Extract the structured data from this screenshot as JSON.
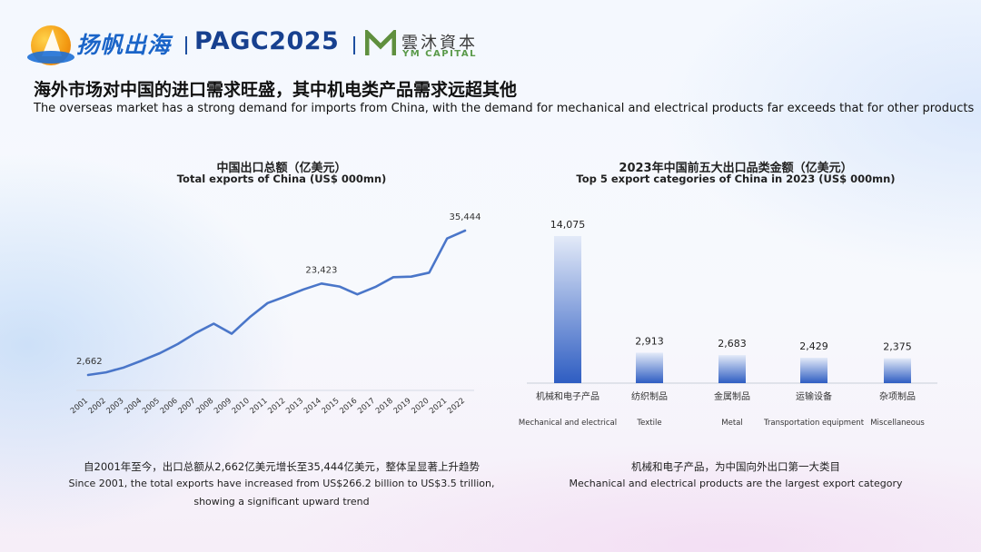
{
  "header": {
    "brand_cn": "扬帆出海",
    "brand_event": "PAGC2025",
    "partner_cn": "雲沐資本",
    "partner_en": "YM CAPITAL"
  },
  "slide": {
    "title_cn": "海外市场对中国的进口需求旺盛，其中机电类产品需求远超其他",
    "title_en": "The overseas market has a strong demand for imports from China, with the demand for mechanical and electrical products far exceeds that for other products"
  },
  "colors": {
    "line": "#4a76c9",
    "bar_top": "#e3eaf8",
    "bar_bottom": "#2e5dc2",
    "accent_brand": "#1a64c8"
  },
  "chart_data": [
    {
      "type": "line",
      "title": "中国出口总额（亿美元）",
      "subtitle": "Total exports of China (US$ 000mn)",
      "x": [
        "2001",
        "2002",
        "2003",
        "2004",
        "2005",
        "2006",
        "2007",
        "2008",
        "2009",
        "2010",
        "2011",
        "2012",
        "2013",
        "2014",
        "2015",
        "2016",
        "2017",
        "2018",
        "2019",
        "2020",
        "2021",
        "2022"
      ],
      "values": [
        2662,
        3256,
        4382,
        5933,
        7620,
        9690,
        12205,
        14307,
        12016,
        15778,
        18984,
        20487,
        22090,
        23423,
        22735,
        20976,
        22635,
        24874,
        24995,
        25900,
        33640,
        35444
      ],
      "data_labels": {
        "2001": "2,662",
        "2014": "23,423",
        "2022": "35,444"
      },
      "ylim": [
        0,
        40000
      ],
      "grid": false,
      "note_cn": "自2001年至今，出口总额从2,662亿美元增长至35,444亿美元，整体呈显著上升趋势",
      "note_en_1": "Since 2001, the total exports have increased from US$266.2 billion to US$3.5 trillion,",
      "note_en_2": "showing a significant upward trend"
    },
    {
      "type": "bar",
      "title": "2023年中国前五大出口品类金额（亿美元）",
      "subtitle": "Top 5 export categories of China in 2023 (US$ 000mn)",
      "categories": [
        "机械和电子产品",
        "纺织制品",
        "金属制品",
        "运输设备",
        "杂项制品"
      ],
      "categories_en": [
        "Mechanical and electrical",
        "Textile",
        "Metal",
        "Transportation equipment",
        "Miscellaneous"
      ],
      "values": [
        14075,
        2913,
        2683,
        2429,
        2375
      ],
      "value_labels": [
        "14,075",
        "2,913",
        "2,683",
        "2,429",
        "2,375"
      ],
      "ylim": [
        0,
        14075
      ],
      "grid": false,
      "note_cn": "机械和电子产品，为中国向外出口第一大类目",
      "note_en": "Mechanical and electrical products are the largest export category"
    }
  ]
}
